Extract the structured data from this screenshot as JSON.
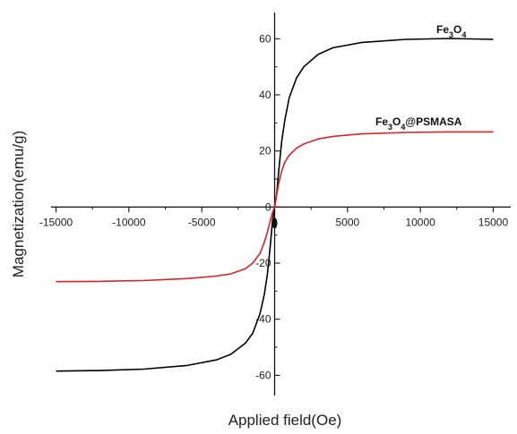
{
  "chart_data": {
    "type": "line",
    "title": "",
    "xlabel": "Applied field(Oe)",
    "ylabel": "Magnetization(emu/g)",
    "xlim": [
      -17000,
      17000
    ],
    "ylim": [
      -72,
      70
    ],
    "xticks": [
      -15000,
      -10000,
      -5000,
      0,
      5000,
      10000,
      15000
    ],
    "xtick_labels": [
      "-15000",
      "-10000",
      "-5000",
      "0",
      "5000",
      "10000",
      "15000"
    ],
    "yticks": [
      -60,
      -40,
      -20,
      0,
      20,
      40,
      60
    ],
    "ytick_labels": [
      "-60",
      "-40",
      "-20",
      "0",
      "20",
      "40",
      "60"
    ],
    "grid": false,
    "legend": "inline labels near curves (top-right)",
    "series": [
      {
        "name": "Fe3O4",
        "label_parts": [
          [
            "Fe",
            false
          ],
          [
            "3",
            true
          ],
          [
            "O",
            false
          ],
          [
            "4",
            true
          ]
        ],
        "color": "#000000",
        "x": [
          -15000,
          -12000,
          -9000,
          -6000,
          -4000,
          -3000,
          -2000,
          -1500,
          -1000,
          -700,
          -500,
          -300,
          -150,
          0,
          150,
          300,
          500,
          700,
          1000,
          1500,
          2000,
          3000,
          4000,
          6000,
          9000,
          12000,
          15000
        ],
        "y": [
          -58.5,
          -58.3,
          -57.8,
          -56.5,
          -54.5,
          -52.5,
          -48.5,
          -45,
          -38,
          -31,
          -24,
          -14,
          -5,
          0,
          5,
          14,
          24,
          31,
          39,
          46,
          50,
          54.5,
          56.8,
          58.7,
          59.8,
          60.1,
          59.8
        ]
      },
      {
        "name": "Fe3O4@PSMASA",
        "label_parts": [
          [
            "Fe",
            false
          ],
          [
            "3",
            true
          ],
          [
            "O",
            false
          ],
          [
            "4",
            true
          ],
          [
            "@PSMASA",
            false
          ]
        ],
        "color": "#d8232a",
        "x": [
          -15000,
          -12000,
          -9000,
          -6000,
          -4000,
          -3000,
          -2000,
          -1500,
          -1000,
          -700,
          -500,
          -300,
          -150,
          0,
          150,
          300,
          500,
          700,
          1000,
          1500,
          2000,
          3000,
          4000,
          6000,
          9000,
          12000,
          15000
        ],
        "y": [
          -26.6,
          -26.5,
          -26.2,
          -25.5,
          -24.6,
          -23.8,
          -22,
          -20,
          -16.5,
          -12.5,
          -9,
          -5,
          -2,
          0,
          4.5,
          9,
          13,
          16,
          18.5,
          21,
          22.5,
          24.3,
          25.2,
          26.1,
          26.6,
          26.8,
          26.8
        ]
      }
    ]
  }
}
